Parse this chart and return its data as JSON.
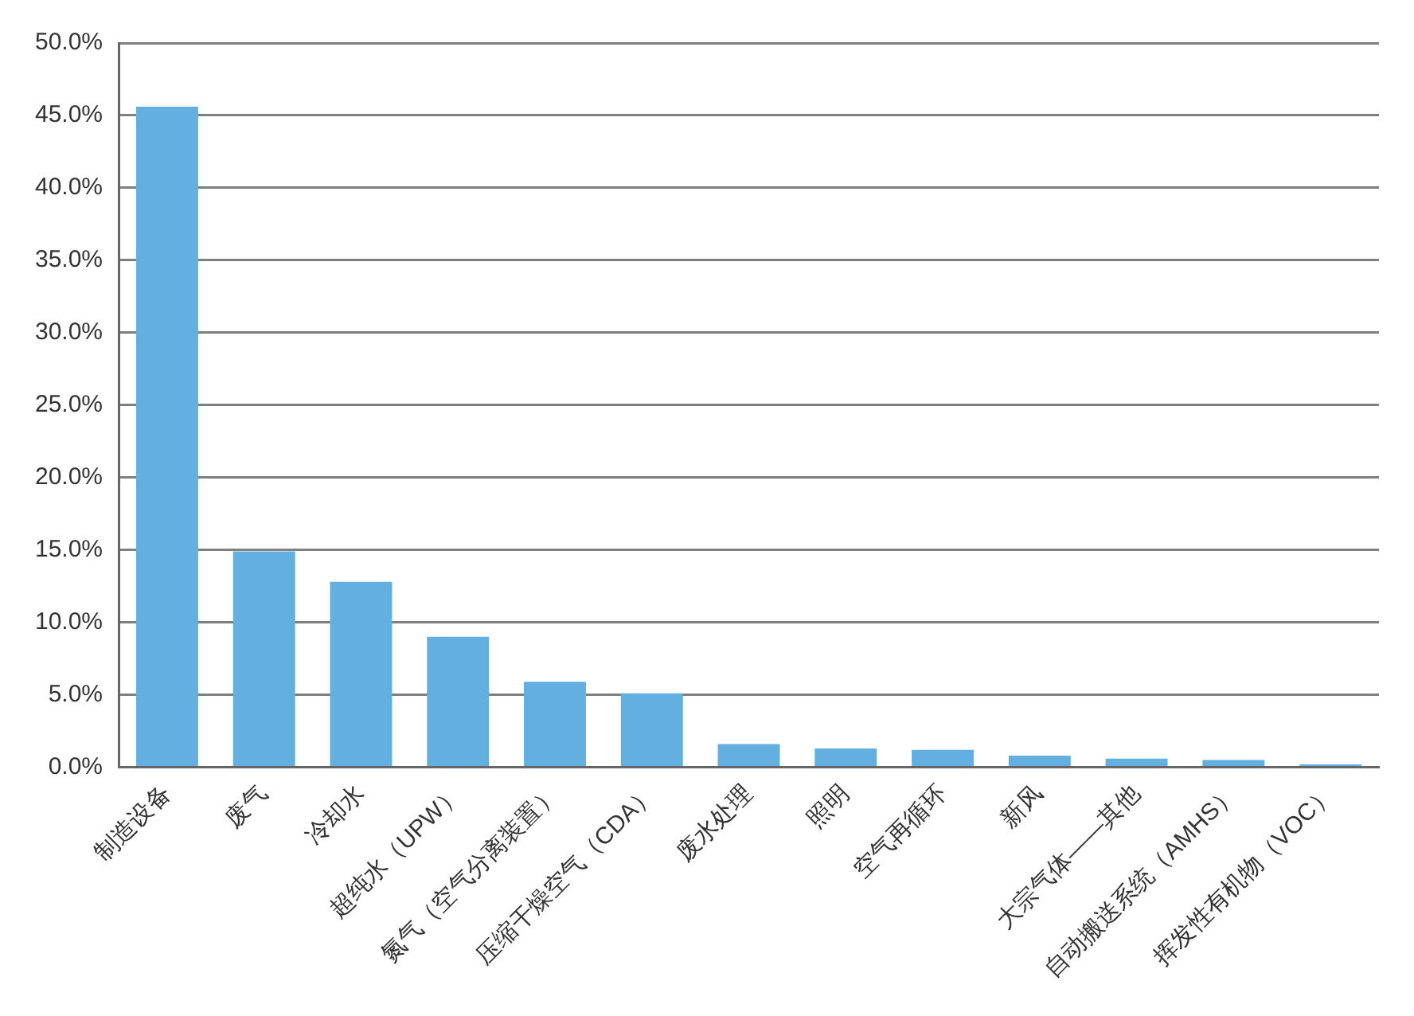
{
  "chart_data": {
    "type": "bar",
    "categories": [
      "制造设备",
      "废气",
      "冷却水",
      "超纯水（UPW）",
      "氮气（空气分离装置）",
      "压缩干燥空气（CDA）",
      "废水处理",
      "照明",
      "空气再循环",
      "新风",
      "大宗气体——其他",
      "自动搬送系统（AMHS）",
      "挥发性有机物（VOC）"
    ],
    "values": [
      45.6,
      14.9,
      12.8,
      9.0,
      5.9,
      5.1,
      1.6,
      1.3,
      1.2,
      0.8,
      0.6,
      0.5,
      0.2
    ],
    "color": "#63b0e0",
    "ylim": [
      0,
      50
    ],
    "yticks": [
      {
        "value": 0,
        "label": "0.0%"
      },
      {
        "value": 5,
        "label": "5.0%"
      },
      {
        "value": 10,
        "label": "10.0%"
      },
      {
        "value": 15,
        "label": "15.0%"
      },
      {
        "value": 20,
        "label": "20.0%"
      },
      {
        "value": 25,
        "label": "25.0%"
      },
      {
        "value": 30,
        "label": "30.0%"
      },
      {
        "value": 35,
        "label": "35.0%"
      },
      {
        "value": 40,
        "label": "40.0%"
      },
      {
        "value": 45,
        "label": "45.0%"
      },
      {
        "value": 50,
        "label": "50.0%"
      }
    ],
    "grid": "y"
  }
}
